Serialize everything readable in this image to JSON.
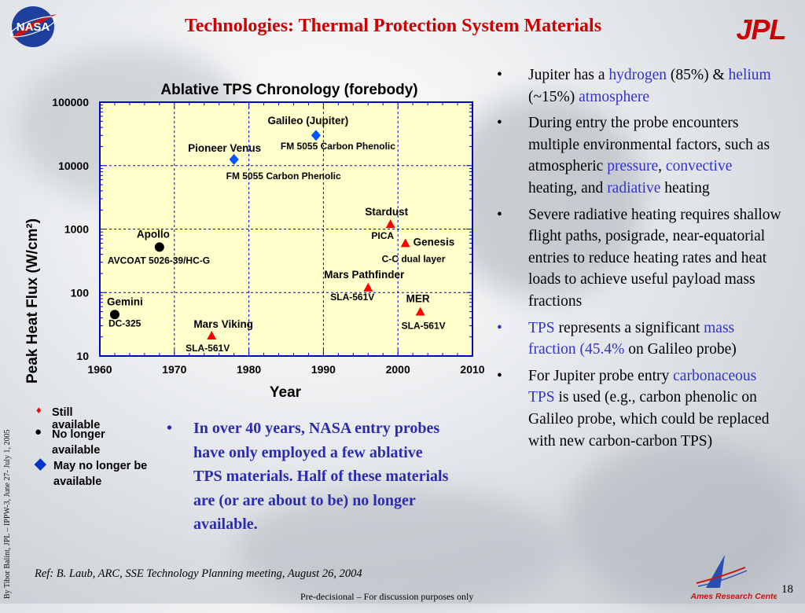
{
  "header": {
    "title": "Technologies: Thermal Protection System Materials",
    "left_logo": "NASA",
    "right_logo": "JPL"
  },
  "side_text": "By Tibor Balint, JPL – IPPW-3, June  27- July 1, 2005",
  "chart_data": {
    "type": "scatter",
    "title": "Ablative TPS Chronology (forebody)",
    "xlabel": "Year",
    "ylabel": "Peak Heat Flux (W/cm²)",
    "xlim": [
      1960,
      2010
    ],
    "ylim": [
      10,
      100000
    ],
    "yscale": "log",
    "xticks": [
      "1960",
      "1970",
      "1980",
      "1990",
      "2000",
      "2010"
    ],
    "yticks": [
      "10",
      "100",
      "1000",
      "10000",
      "100000"
    ],
    "grid": true,
    "background_color": "#ffffcc",
    "points": [
      {
        "label": "Gemini",
        "material": "DC-325",
        "x": 1962,
        "y": 45,
        "marker": "circle",
        "color": "#000000"
      },
      {
        "label": "Apollo",
        "material": "AVCOAT 5026-39/HC-G",
        "x": 1968,
        "y": 520,
        "marker": "circle",
        "color": "#000000"
      },
      {
        "label": "Mars Viking",
        "material": "SLA-561V",
        "x": 1975,
        "y": 21,
        "marker": "triangle",
        "color": "#ff0000"
      },
      {
        "label": "Pioneer Venus",
        "material": "FM 5055 Carbon Phenolic",
        "x": 1978,
        "y": 12500,
        "marker": "diamond",
        "color": "#0055ff"
      },
      {
        "label": "Galileo (Jupiter)",
        "material": "FM 5055 Carbon Phenolic",
        "x": 1989,
        "y": 30000,
        "marker": "diamond",
        "color": "#0055ff"
      },
      {
        "label": "Mars Pathfinder",
        "material": "SLA-561V",
        "x": 1996,
        "y": 120,
        "marker": "triangle",
        "color": "#ff0000"
      },
      {
        "label": "Stardust",
        "material": "PICA",
        "x": 1999,
        "y": 1200,
        "marker": "triangle",
        "color": "#ff0000"
      },
      {
        "label": "Genesis",
        "material": "C-C dual layer",
        "x": 2001,
        "y": 600,
        "marker": "triangle",
        "color": "#ff0000"
      },
      {
        "label": "MER",
        "material": "SLA-561V",
        "x": 2003,
        "y": 50,
        "marker": "triangle",
        "color": "#ff0000"
      }
    ]
  },
  "legend": [
    {
      "symbol": "♦",
      "label": "Still available",
      "color": "#ff0000"
    },
    {
      "symbol": "●",
      "label": "No longer available",
      "color": "#000000"
    },
    {
      "symbol": "◆",
      "label": "May no longer be available",
      "color": "#0033cc"
    }
  ],
  "bottom_bullet": "In over 40 years, NASA entry probes have only employed a few ablative TPS materials. Half of these materials are (or are about to be) no longer available.",
  "bullets": [
    {
      "parts": [
        {
          "t": "Jupiter has a "
        },
        {
          "t": "hydrogen",
          "c": "blue"
        },
        {
          "t": " (85%) & "
        },
        {
          "t": "helium",
          "c": "blue"
        },
        {
          "t": " (~15%) "
        },
        {
          "t": "atmosphere",
          "c": "blue"
        }
      ]
    },
    {
      "parts": [
        {
          "t": "During entry the probe encounters multiple environmental factors, such as atmospheric "
        },
        {
          "t": "pressure",
          "c": "blue"
        },
        {
          "t": ", "
        },
        {
          "t": "convective",
          "c": "blue"
        },
        {
          "t": " heating, and "
        },
        {
          "t": "radiative",
          "c": "blue"
        },
        {
          "t": " heating"
        }
      ]
    },
    {
      "parts": [
        {
          "t": "Severe radiative heating requires shallow flight paths, posigrade, near-equatorial entries to reduce heating rates and heat loads to achieve useful payload mass fractions"
        }
      ]
    },
    {
      "parts": [
        {
          "t": "TPS",
          "c": "blue"
        },
        {
          "t": " represents a significant "
        },
        {
          "t": "mass fraction (45.4%",
          "c": "blue"
        },
        {
          "t": " on Galileo probe)"
        }
      ]
    },
    {
      "parts": [
        {
          "t": "For Jupiter probe entry "
        },
        {
          "t": "carbonaceous TPS",
          "c": "blue"
        },
        {
          "t": " is used (e.g., carbon phenolic on Galileo probe, which could be replaced with new carbon-carbon TPS)"
        }
      ]
    }
  ],
  "reference": "Ref: B. Laub, ARC, SSE Technology Planning meeting, August 26, 2004",
  "footer": "Pre-decisional – For discussion purposes only",
  "page_number": "18",
  "ames_logo_text": "Ames Research Center"
}
